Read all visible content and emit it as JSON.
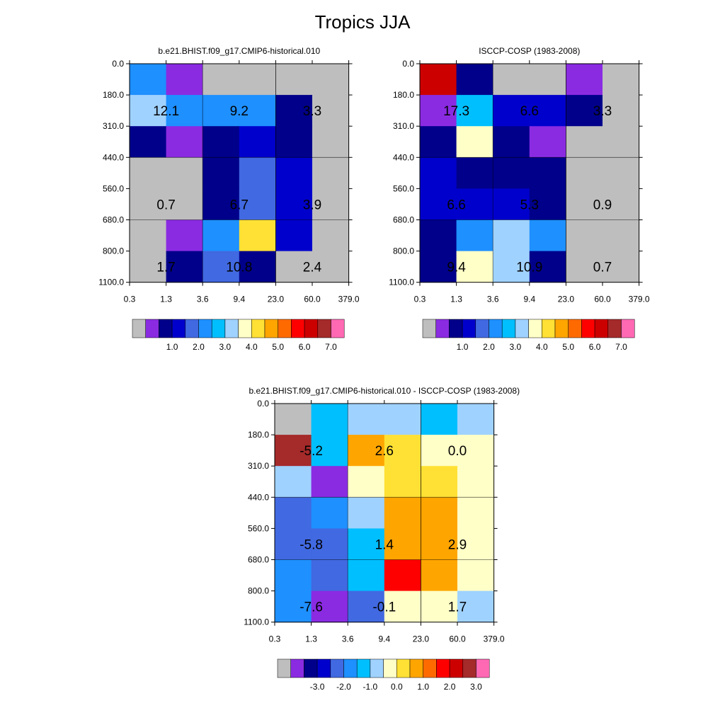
{
  "title": "Tropics JJA",
  "y_ticks": [
    "0.0",
    "180.0",
    "310.0",
    "440.0",
    "560.0",
    "680.0",
    "800.0",
    "1100.0"
  ],
  "x_ticks": [
    "0.3",
    "1.3",
    "3.6",
    "9.4",
    "23.0",
    "60.0",
    "379.0"
  ],
  "colors": {
    "missing": "#bebebe",
    "grid": "#000000",
    "palette": [
      "#bebebe",
      "#8a2be2",
      "#00008b",
      "#0000cd",
      "#4169e1",
      "#1e90ff",
      "#00bfff",
      "#a0d2ff",
      "#ffffc8",
      "#ffe135",
      "#ffa500",
      "#ff6a00",
      "#ff0000",
      "#cd0000",
      "#a52a2a",
      "#ff69b4"
    ]
  },
  "chart_data": [
    {
      "type": "heatmap",
      "title": "b.e21.BHIST.f09_g17.CMIP6-historical.010",
      "xlabel": "",
      "ylabel": "",
      "x_ticks": [
        "0.3",
        "1.3",
        "3.6",
        "9.4",
        "23.0",
        "60.0",
        "379.0"
      ],
      "y_ticks": [
        "0.0",
        "180.0",
        "310.0",
        "440.0",
        "560.0",
        "680.0",
        "800.0",
        "1100.0"
      ],
      "cells": [
        [
          5,
          1,
          0,
          0,
          0,
          0
        ],
        [
          7,
          5,
          5,
          5,
          2,
          0
        ],
        [
          2,
          1,
          2,
          3,
          2,
          0
        ],
        [
          0,
          0,
          2,
          4,
          3,
          0
        ],
        [
          0,
          0,
          2,
          4,
          3,
          0
        ],
        [
          0,
          1,
          5,
          9,
          3,
          0
        ],
        [
          0,
          2,
          4,
          2,
          0,
          0
        ]
      ],
      "annotations": [
        {
          "row": 1,
          "col": 1,
          "text": "12.1"
        },
        {
          "row": 1,
          "col": 3,
          "text": "9.2"
        },
        {
          "row": 1,
          "col": 5,
          "text": "3.3"
        },
        {
          "row": 4,
          "col": 1,
          "text": "0.7"
        },
        {
          "row": 4,
          "col": 3,
          "text": "6.7"
        },
        {
          "row": 4,
          "col": 5,
          "text": "3.9"
        },
        {
          "row": 6,
          "col": 1,
          "text": "1.7"
        },
        {
          "row": 6,
          "col": 3,
          "text": "10.8"
        },
        {
          "row": 6,
          "col": 5,
          "text": "2.4"
        }
      ],
      "colorbar_labels": [
        "1.0",
        "2.0",
        "3.0",
        "4.0",
        "5.0",
        "6.0",
        "7.0"
      ]
    },
    {
      "type": "heatmap",
      "title": "ISCCP-COSP (1983-2008)",
      "xlabel": "",
      "ylabel": "",
      "x_ticks": [
        "0.3",
        "1.3",
        "3.6",
        "9.4",
        "23.0",
        "60.0",
        "379.0"
      ],
      "y_ticks": [
        "0.0",
        "180.0",
        "310.0",
        "440.0",
        "560.0",
        "680.0",
        "800.0",
        "1100.0"
      ],
      "cells": [
        [
          13,
          2,
          0,
          0,
          1,
          0
        ],
        [
          1,
          6,
          3,
          3,
          2,
          0
        ],
        [
          2,
          8,
          2,
          1,
          0,
          0
        ],
        [
          3,
          2,
          2,
          2,
          0,
          0
        ],
        [
          3,
          3,
          3,
          2,
          0,
          0
        ],
        [
          2,
          5,
          7,
          5,
          0,
          0
        ],
        [
          2,
          8,
          7,
          2,
          0,
          0
        ]
      ],
      "annotations": [
        {
          "row": 1,
          "col": 1,
          "text": "17.3"
        },
        {
          "row": 1,
          "col": 3,
          "text": "6.6"
        },
        {
          "row": 1,
          "col": 5,
          "text": "3.3"
        },
        {
          "row": 4,
          "col": 1,
          "text": "6.6"
        },
        {
          "row": 4,
          "col": 3,
          "text": "5.3"
        },
        {
          "row": 4,
          "col": 5,
          "text": "0.9"
        },
        {
          "row": 6,
          "col": 1,
          "text": "9.4"
        },
        {
          "row": 6,
          "col": 3,
          "text": "10.9"
        },
        {
          "row": 6,
          "col": 5,
          "text": "0.7"
        }
      ],
      "colorbar_labels": [
        "1.0",
        "2.0",
        "3.0",
        "4.0",
        "5.0",
        "6.0",
        "7.0"
      ]
    },
    {
      "type": "heatmap",
      "title": "b.e21.BHIST.f09_g17.CMIP6-historical.010 - ISCCP-COSP (1983-2008)",
      "xlabel": "",
      "ylabel": "",
      "x_ticks": [
        "0.3",
        "1.3",
        "3.6",
        "9.4",
        "23.0",
        "60.0",
        "379.0"
      ],
      "y_ticks": [
        "0.0",
        "180.0",
        "310.0",
        "440.0",
        "560.0",
        "680.0",
        "800.0",
        "1100.0"
      ],
      "cells": [
        [
          0,
          6,
          7,
          7,
          6,
          7
        ],
        [
          14,
          6,
          10,
          9,
          8,
          8
        ],
        [
          7,
          1,
          8,
          9,
          9,
          8
        ],
        [
          4,
          5,
          7,
          10,
          10,
          8
        ],
        [
          4,
          4,
          6,
          10,
          10,
          8
        ],
        [
          5,
          4,
          6,
          12,
          10,
          8
        ],
        [
          5,
          1,
          4,
          8,
          8,
          7
        ]
      ],
      "annotations": [
        {
          "row": 1,
          "col": 1,
          "text": "-5.2"
        },
        {
          "row": 1,
          "col": 3,
          "text": "2.6"
        },
        {
          "row": 1,
          "col": 5,
          "text": "0.0"
        },
        {
          "row": 4,
          "col": 1,
          "text": "-5.8"
        },
        {
          "row": 4,
          "col": 3,
          "text": "1.4"
        },
        {
          "row": 4,
          "col": 5,
          "text": "2.9"
        },
        {
          "row": 6,
          "col": 1,
          "text": "-7.6"
        },
        {
          "row": 6,
          "col": 3,
          "text": "-0.1"
        },
        {
          "row": 6,
          "col": 5,
          "text": "1.7"
        }
      ],
      "colorbar_labels": [
        "-3.0",
        "-2.0",
        "-1.0",
        "0.0",
        "1.0",
        "2.0",
        "3.0"
      ]
    }
  ]
}
